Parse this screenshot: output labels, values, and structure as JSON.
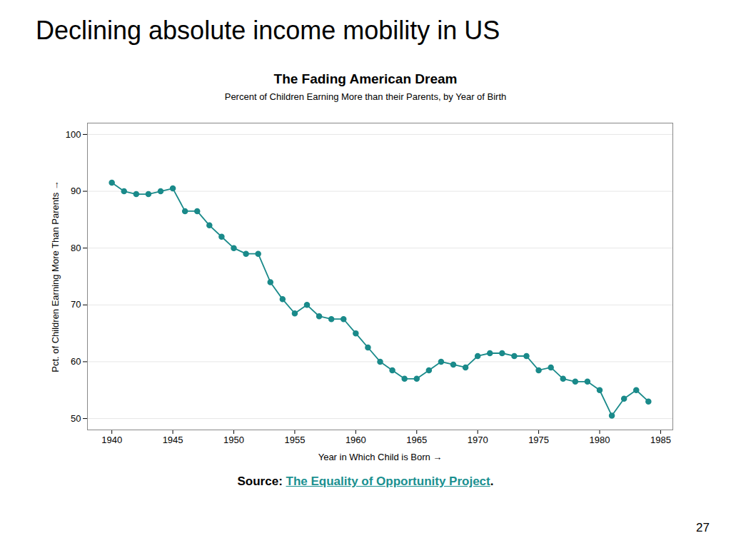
{
  "title": "Declining absolute income mobility in US",
  "chart_data": {
    "type": "line",
    "title": "The Fading American Dream",
    "subtitle": "Percent of Children Earning More than their Parents, by Year of Birth",
    "xlabel": "Year in Which Child is Born",
    "ylabel": "Pct. of Children Earning More Than Parents",
    "x": [
      1940,
      1941,
      1942,
      1943,
      1944,
      1945,
      1946,
      1947,
      1948,
      1949,
      1950,
      1951,
      1952,
      1953,
      1954,
      1955,
      1956,
      1957,
      1958,
      1959,
      1960,
      1961,
      1962,
      1963,
      1964,
      1965,
      1966,
      1967,
      1968,
      1969,
      1970,
      1971,
      1972,
      1973,
      1974,
      1975,
      1976,
      1977,
      1978,
      1979,
      1980,
      1981,
      1982,
      1983,
      1984
    ],
    "values": [
      91.5,
      90.0,
      89.5,
      89.5,
      90.0,
      90.5,
      86.5,
      86.5,
      84.0,
      82.0,
      80.0,
      79.0,
      79.0,
      74.0,
      71.0,
      68.5,
      70.0,
      68.0,
      67.5,
      67.5,
      65.0,
      62.5,
      60.0,
      58.5,
      57.0,
      57.0,
      58.5,
      60.0,
      59.5,
      59.0,
      61.0,
      61.5,
      61.5,
      61.0,
      61.0,
      58.5,
      59.0,
      57.0,
      56.5,
      56.5,
      55.0,
      50.5,
      53.5,
      55.0,
      53.0
    ],
    "color": "#1a8a8a",
    "marker": "circle",
    "xlim": [
      1938,
      1986
    ],
    "xticks": [
      1940,
      1945,
      1950,
      1955,
      1960,
      1965,
      1970,
      1975,
      1980,
      1985
    ],
    "ylim": [
      48,
      102
    ],
    "yticks": [
      50,
      60,
      70,
      80,
      90,
      100
    ],
    "grid": "y"
  },
  "source": [
    {
      "text": "Source: "
    },
    {
      "text": "The Equality of Opportunity Project",
      "color": "#1a9090"
    },
    {
      "text": "."
    }
  ],
  "page_number": "27"
}
